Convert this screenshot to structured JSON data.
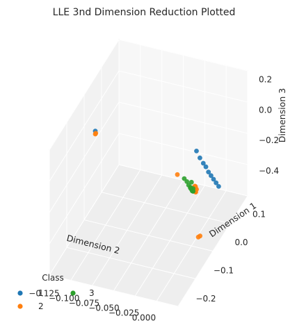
{
  "chart_data": {
    "type": "scatter3d",
    "title": "LLE 3nd Dimension Reduction Plotted",
    "xlabel": "Dimension 2",
    "ylabel": "Dimension 1",
    "zlabel": "Dimension 3",
    "xticks": [
      "−0.125",
      "−0.100",
      "−0.075",
      "−0.050",
      "−0.025",
      "0.000"
    ],
    "yticks": [
      "−0.2",
      "−0.1",
      "0.0",
      "0.1"
    ],
    "zticks": [
      "0.2",
      "0.0",
      "−0.2",
      "−0.4"
    ],
    "xlim": [
      -0.14,
      0.01
    ],
    "ylim": [
      -0.25,
      0.16
    ],
    "zlim": [
      -0.55,
      0.27
    ],
    "grid": true,
    "legend": {
      "title": "Class",
      "placement": "bottom-left",
      "entries": [
        {
          "label": "1",
          "color": "#1f77b4"
        },
        {
          "label": "2",
          "color": "#ff7f0e"
        },
        {
          "label": "3",
          "color": "#2ca02c"
        }
      ]
    },
    "series": [
      {
        "name": "1",
        "color": "#1f77b4",
        "points": [
          [
            -0.13,
            -0.03,
            0.02
          ],
          [
            -0.012,
            -0.03,
            0.05
          ],
          [
            -0.01,
            -0.02,
            -0.01
          ],
          [
            -0.008,
            -0.01,
            -0.06
          ],
          [
            -0.007,
            0.0,
            -0.1
          ],
          [
            -0.006,
            0.01,
            -0.15
          ],
          [
            -0.005,
            0.02,
            -0.19
          ],
          [
            -0.004,
            0.03,
            -0.23
          ],
          [
            -0.003,
            0.04,
            -0.27
          ],
          [
            -0.002,
            0.05,
            -0.31
          ]
        ]
      },
      {
        "name": "2",
        "color": "#ff7f0e",
        "points": [
          [
            -0.13,
            -0.03,
            0.0
          ],
          [
            -0.129,
            -0.032,
            0.01
          ],
          [
            0.0,
            -0.1,
            -0.04
          ],
          [
            -0.003,
            -0.09,
            -0.07
          ],
          [
            -0.006,
            -0.06,
            -0.14
          ],
          [
            -0.009,
            -0.05,
            -0.18
          ],
          [
            -0.012,
            -0.035,
            -0.21
          ],
          [
            -0.015,
            -0.02,
            -0.24
          ],
          [
            -0.018,
            -0.005,
            -0.27
          ],
          [
            -0.021,
            0.01,
            -0.3
          ],
          [
            -0.024,
            0.025,
            -0.32
          ],
          [
            -0.027,
            0.04,
            -0.345
          ],
          [
            -0.03,
            0.055,
            -0.37
          ],
          [
            -0.033,
            0.07,
            -0.395
          ],
          [
            -0.036,
            0.085,
            -0.42
          ],
          [
            -0.06,
            0.1,
            -0.4
          ],
          [
            0.0,
            -0.07,
            -0.42
          ],
          [
            0.0,
            -0.08,
            -0.41
          ]
        ]
      },
      {
        "name": "3",
        "color": "#2ca02c",
        "points": [
          [
            -0.004,
            -0.1,
            -0.02
          ],
          [
            -0.006,
            -0.08,
            -0.1
          ],
          [
            -0.016,
            -0.03,
            -0.22
          ],
          [
            -0.019,
            -0.015,
            -0.25
          ],
          [
            -0.023,
            0.0,
            -0.28
          ],
          [
            -0.028,
            0.02,
            -0.31
          ],
          [
            -0.032,
            0.035,
            -0.335
          ],
          [
            -0.035,
            0.05,
            -0.36
          ],
          [
            -0.04,
            0.065,
            -0.38
          ],
          [
            -0.045,
            0.08,
            -0.39
          ],
          [
            -0.05,
            0.09,
            -0.395
          ]
        ]
      }
    ]
  }
}
